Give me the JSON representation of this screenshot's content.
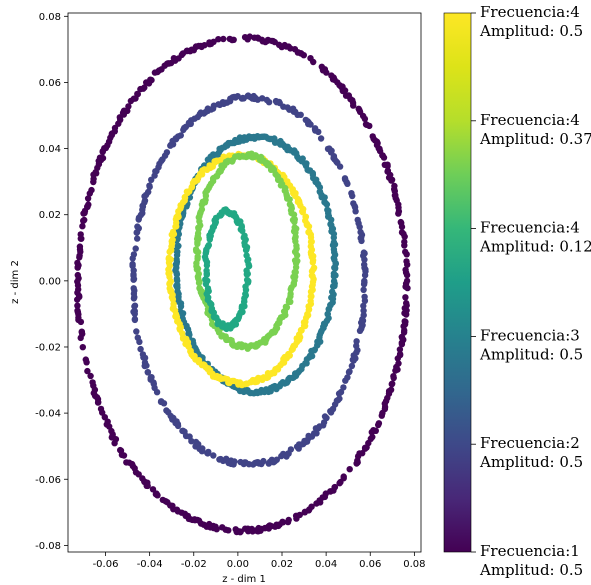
{
  "chart_data": {
    "type": "scatter",
    "title": "",
    "xlabel": "z - dim 1",
    "ylabel": "z - dim 2",
    "xlim": [
      -0.077,
      0.083
    ],
    "ylim": [
      -0.082,
      0.081
    ],
    "xticks": [
      "-0.06",
      "-0.04",
      "-0.02",
      "0.00",
      "0.02",
      "0.04",
      "0.06",
      "0.08"
    ],
    "yticks": [
      "-0.08",
      "-0.06",
      "-0.04",
      "-0.02",
      "0.00",
      "0.02",
      "0.04",
      "0.06",
      "0.08"
    ],
    "grid": false,
    "colorbar": {
      "colormap": "viridis",
      "labels": [
        {
          "line1": "Frecuencia:4",
          "line2": "Amplitud: 0.5",
          "color": "#fde725"
        },
        {
          "line1": "Frecuencia:4",
          "line2": "Amplitud: 0.375",
          "color": "#7ad151"
        },
        {
          "line1": "Frecuencia:4",
          "line2": "Amplitud: 0.125",
          "color": "#22a884"
        },
        {
          "line1": "Frecuencia:3",
          "line2": "Amplitud: 0.5",
          "color": "#2a788e"
        },
        {
          "line1": "Frecuencia:2",
          "line2": "Amplitud: 0.5",
          "color": "#414487"
        },
        {
          "line1": "Frecuencia:1",
          "line2": "Amplitud: 0.5",
          "color": "#440154"
        }
      ]
    },
    "series": [
      {
        "color": "#440154",
        "cx": 0.002,
        "cy": -0.001,
        "rx": 0.0745,
        "ry": 0.0745,
        "tilt": 0.0
      },
      {
        "color": "#414487",
        "cx": 0.005,
        "cy": 0.0,
        "rx": 0.0525,
        "ry": 0.0555,
        "tilt": 0.0
      },
      {
        "color": "#2a788e",
        "cx": 0.008,
        "cy": 0.005,
        "rx": 0.036,
        "ry": 0.0385,
        "tilt": 0.0
      },
      {
        "color": "#fde725",
        "cx": 0.0015,
        "cy": 0.0035,
        "rx": 0.0325,
        "ry": 0.0345,
        "tilt": 0.0
      },
      {
        "color": "#7ad151",
        "cx": 0.004,
        "cy": 0.009,
        "rx": 0.0225,
        "ry": 0.029,
        "tilt": 0.0
      },
      {
        "color": "#22a884",
        "cx": -0.005,
        "cy": 0.0035,
        "rx": 0.0095,
        "ry": 0.0175,
        "tilt": 0.0
      }
    ]
  }
}
